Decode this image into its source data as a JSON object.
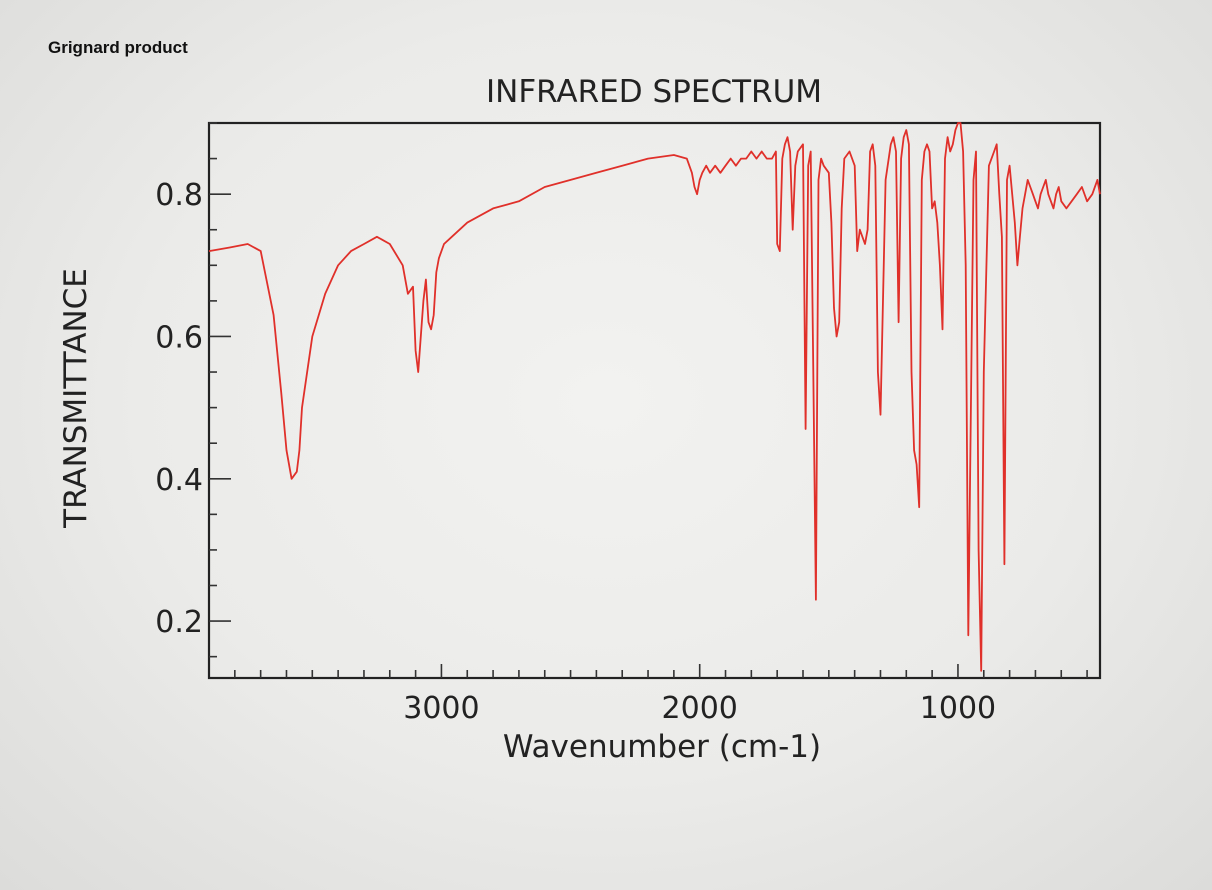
{
  "page_label": "Grignard product",
  "chart_data": {
    "type": "line",
    "title": "INFRARED SPECTRUM",
    "xlabel": "Wavenumber (cm-1)",
    "ylabel": "TRANSMITTANCE",
    "xlim": [
      3900,
      450
    ],
    "ylim": [
      0.12,
      0.9
    ],
    "x_ticks": [
      3000,
      2000,
      1000
    ],
    "y_ticks": [
      0.2,
      0.4,
      0.6,
      0.8
    ],
    "grid": false,
    "line_color": "#e0302a",
    "series": [
      {
        "x": [
          3900,
          3820,
          3750,
          3700,
          3650,
          3620,
          3600,
          3580,
          3560,
          3550,
          3540,
          3500,
          3450,
          3400,
          3350,
          3300,
          3250,
          3200,
          3150,
          3130,
          3110,
          3100,
          3090,
          3070,
          3060,
          3050,
          3040,
          3030,
          3020,
          3010,
          2990,
          2960,
          2900,
          2800,
          2700,
          2600,
          2500,
          2400,
          2300,
          2200,
          2100,
          2050,
          2030,
          2020,
          2010,
          2000,
          1990,
          1975,
          1960,
          1940,
          1920,
          1900,
          1880,
          1860,
          1840,
          1820,
          1800,
          1780,
          1760,
          1740,
          1720,
          1705,
          1700,
          1690,
          1680,
          1670,
          1660,
          1650,
          1640,
          1630,
          1620,
          1600,
          1590,
          1580,
          1570,
          1560,
          1550,
          1540,
          1530,
          1520,
          1500,
          1490,
          1480,
          1470,
          1460,
          1450,
          1440,
          1420,
          1400,
          1390,
          1380,
          1370,
          1360,
          1350,
          1340,
          1330,
          1320,
          1310,
          1300,
          1280,
          1260,
          1250,
          1240,
          1230,
          1220,
          1210,
          1200,
          1190,
          1180,
          1170,
          1160,
          1150,
          1140,
          1130,
          1120,
          1110,
          1100,
          1090,
          1080,
          1070,
          1060,
          1050,
          1040,
          1030,
          1020,
          1010,
          1000,
          990,
          980,
          970,
          960,
          950,
          940,
          930,
          920,
          910,
          900,
          880,
          860,
          850,
          840,
          830,
          820,
          810,
          800,
          790,
          780,
          770,
          760,
          750,
          740,
          730,
          720,
          710,
          700,
          690,
          680,
          670,
          660,
          650,
          640,
          630,
          620,
          610,
          600,
          580,
          560,
          540,
          520,
          500,
          480,
          460,
          450
        ],
        "y": [
          0.72,
          0.725,
          0.73,
          0.72,
          0.63,
          0.52,
          0.44,
          0.4,
          0.41,
          0.44,
          0.5,
          0.6,
          0.66,
          0.7,
          0.72,
          0.73,
          0.74,
          0.73,
          0.7,
          0.66,
          0.67,
          0.58,
          0.55,
          0.65,
          0.68,
          0.62,
          0.61,
          0.63,
          0.69,
          0.71,
          0.73,
          0.74,
          0.76,
          0.78,
          0.79,
          0.81,
          0.82,
          0.83,
          0.84,
          0.85,
          0.855,
          0.85,
          0.83,
          0.81,
          0.8,
          0.82,
          0.83,
          0.84,
          0.83,
          0.84,
          0.83,
          0.84,
          0.85,
          0.84,
          0.85,
          0.85,
          0.86,
          0.85,
          0.86,
          0.85,
          0.85,
          0.86,
          0.73,
          0.72,
          0.85,
          0.87,
          0.88,
          0.86,
          0.75,
          0.84,
          0.86,
          0.87,
          0.47,
          0.84,
          0.86,
          0.55,
          0.23,
          0.82,
          0.85,
          0.84,
          0.83,
          0.76,
          0.64,
          0.6,
          0.62,
          0.78,
          0.85,
          0.86,
          0.84,
          0.72,
          0.75,
          0.74,
          0.73,
          0.75,
          0.86,
          0.87,
          0.84,
          0.55,
          0.49,
          0.82,
          0.87,
          0.88,
          0.86,
          0.62,
          0.85,
          0.88,
          0.89,
          0.87,
          0.55,
          0.44,
          0.42,
          0.36,
          0.82,
          0.86,
          0.87,
          0.86,
          0.78,
          0.79,
          0.76,
          0.7,
          0.61,
          0.85,
          0.88,
          0.86,
          0.87,
          0.89,
          0.9,
          0.9,
          0.86,
          0.7,
          0.18,
          0.5,
          0.82,
          0.86,
          0.3,
          0.13,
          0.55,
          0.84,
          0.86,
          0.87,
          0.8,
          0.74,
          0.28,
          0.82,
          0.84,
          0.8,
          0.76,
          0.7,
          0.74,
          0.78,
          0.8,
          0.82,
          0.81,
          0.8,
          0.79,
          0.78,
          0.8,
          0.81,
          0.82,
          0.8,
          0.79,
          0.78,
          0.8,
          0.81,
          0.79,
          0.78,
          0.79,
          0.8,
          0.81,
          0.79,
          0.8,
          0.82,
          0.8
        ]
      }
    ]
  }
}
